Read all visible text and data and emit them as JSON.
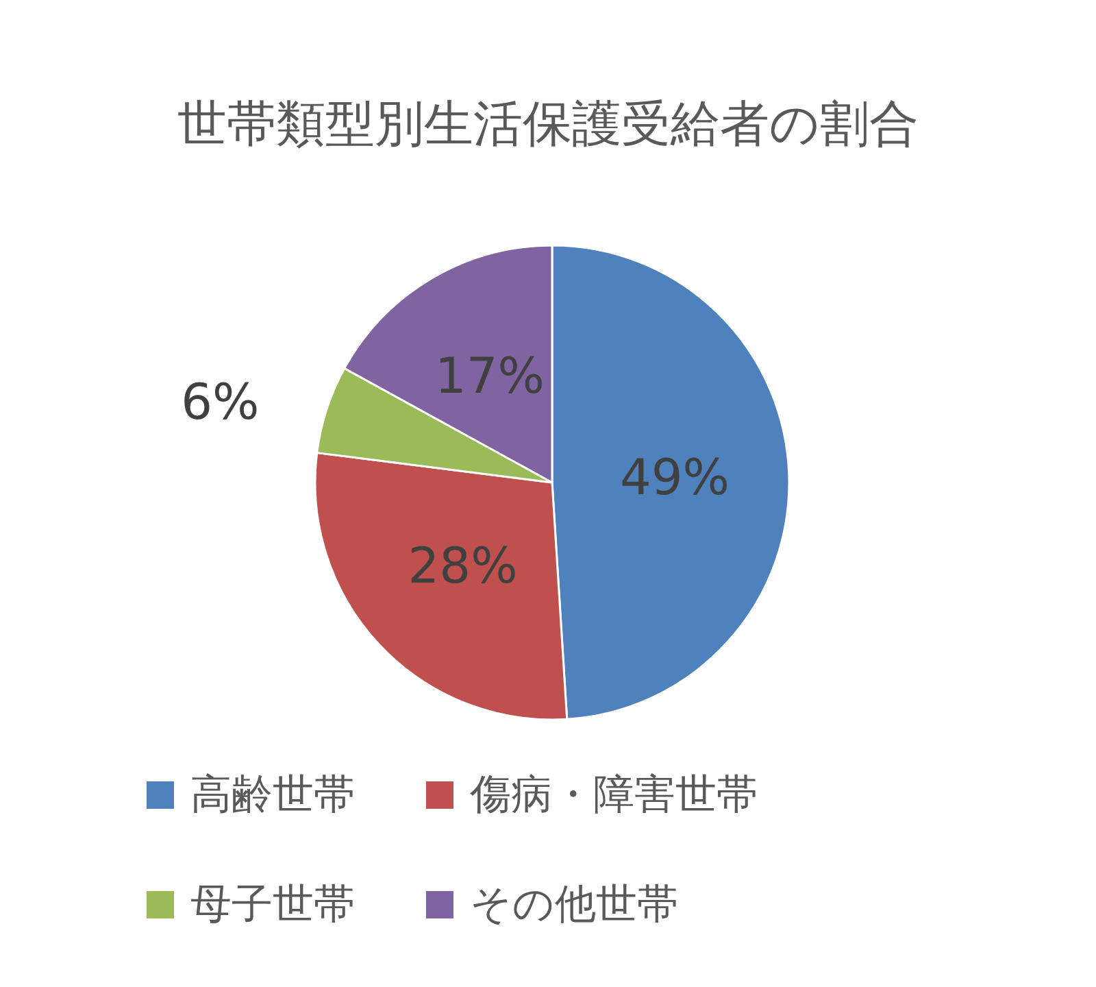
{
  "chart_data": {
    "type": "pie",
    "title": "世帯類型別生活保護受給者の割合",
    "categories": [
      "高齢世帯",
      "傷病・障害世帯",
      "母子世帯",
      "その他世帯"
    ],
    "values": [
      49,
      28,
      6,
      17
    ],
    "colors": [
      "#4f81bd",
      "#c0504d",
      "#9bbb59",
      "#8064a2"
    ],
    "value_labels": [
      "49%",
      "28%",
      "6%",
      "17%"
    ],
    "legend": "bottom"
  }
}
